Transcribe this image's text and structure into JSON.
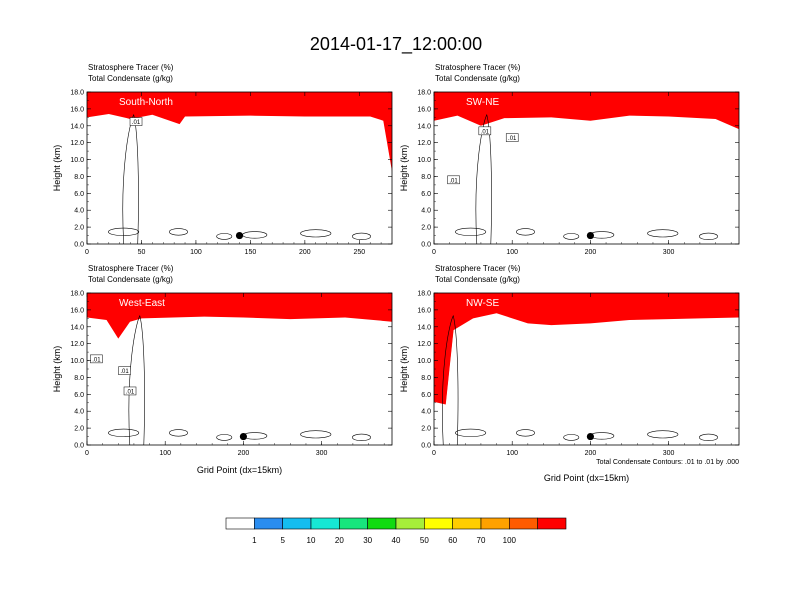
{
  "title": "2014-01-17_12:00:00",
  "colors": {
    "levels": [
      "#ffffff",
      "#2a8df0",
      "#14bdf0",
      "#16e8d4",
      "#17e67d",
      "#11db11",
      "#a6ee3a",
      "#ffff00",
      "#ffce00",
      "#ffa100",
      "#ff5b00",
      "#ff0000"
    ],
    "contour": "#000000"
  },
  "colorbar": {
    "labels": [
      "1",
      "5",
      "10",
      "20",
      "30",
      "40",
      "50",
      "60",
      "70",
      "100"
    ]
  },
  "footnote": "Total Condensate Contours: .01 to .01 by .000",
  "chart_data": [
    {
      "type": "heatmap",
      "name": "South-North",
      "header": [
        "Stratosphere Tracer   (%)",
        "Total Condensate   (g/kg)"
      ],
      "ylabel": "Height (km)",
      "xlabel": "",
      "xlim": [
        0,
        280
      ],
      "ylim": [
        0,
        18
      ],
      "xticks": [
        "0",
        "50",
        "100",
        "150",
        "200",
        "250"
      ],
      "xtick_values": [
        0,
        50,
        100,
        150,
        200,
        250
      ],
      "yticks": [
        "0.0",
        "2.0",
        "4.0",
        "6.0",
        "8.0",
        "10.0",
        "12.0",
        "14.0",
        "16.0",
        "18.0"
      ],
      "tropopause_km": [
        [
          0,
          15.4
        ],
        [
          20,
          15.8
        ],
        [
          40,
          15.2
        ],
        [
          60,
          15.7
        ],
        [
          85,
          14.6
        ],
        [
          90,
          15.5
        ],
        [
          150,
          15.6
        ],
        [
          200,
          15.5
        ],
        [
          260,
          15.5
        ],
        [
          272,
          15.0
        ],
        [
          276,
          12.0
        ],
        [
          280,
          9.0
        ]
      ],
      "contour_labels": [
        {
          "x": 45,
          "y": 14.5,
          "text": ".01"
        }
      ],
      "marker": {
        "x": 140,
        "y": 1.0
      }
    },
    {
      "type": "heatmap",
      "name": "SW-NE",
      "header": [
        "Stratosphere Tracer   (%)",
        "Total Condensate   (g/kg)"
      ],
      "ylabel": "Height (km)",
      "xlabel": "",
      "xlim": [
        0,
        390
      ],
      "ylim": [
        0,
        18
      ],
      "xticks": [
        "0",
        "100",
        "200",
        "300"
      ],
      "xtick_values": [
        0,
        100,
        200,
        300
      ],
      "yticks": [
        "0.0",
        "2.0",
        "4.0",
        "6.0",
        "8.0",
        "10.0",
        "12.0",
        "14.0",
        "16.0",
        "18.0"
      ],
      "tropopause_km": [
        [
          0,
          15.0
        ],
        [
          30,
          15.6
        ],
        [
          60,
          14.4
        ],
        [
          90,
          15.3
        ],
        [
          150,
          15.4
        ],
        [
          200,
          15.0
        ],
        [
          250,
          15.6
        ],
        [
          300,
          15.5
        ],
        [
          360,
          15.2
        ],
        [
          390,
          14.0
        ]
      ],
      "contour_labels": [
        {
          "x": 25,
          "y": 7.6,
          "text": ".01"
        },
        {
          "x": 65,
          "y": 13.4,
          "text": ".01"
        },
        {
          "x": 100,
          "y": 12.6,
          "text": ".01"
        }
      ],
      "marker": {
        "x": 200,
        "y": 1.0
      }
    },
    {
      "type": "heatmap",
      "name": "West-East",
      "header": [
        "Stratosphere Tracer   (%)",
        "Total Condensate   (g/kg)"
      ],
      "ylabel": "Height (km)",
      "xlabel": "Grid Point (dx=15km)",
      "xlim": [
        0,
        390
      ],
      "ylim": [
        0,
        18
      ],
      "xticks": [
        "0",
        "100",
        "200",
        "300"
      ],
      "xtick_values": [
        0,
        100,
        200,
        300
      ],
      "yticks": [
        "0.0",
        "2.0",
        "4.0",
        "6.0",
        "8.0",
        "10.0",
        "12.0",
        "14.0",
        "16.0",
        "18.0"
      ],
      "tropopause_km": [
        [
          0,
          15.5
        ],
        [
          25,
          15.2
        ],
        [
          40,
          13.0
        ],
        [
          55,
          15.0
        ],
        [
          70,
          15.4
        ],
        [
          150,
          15.6
        ],
        [
          200,
          15.5
        ],
        [
          260,
          15.3
        ],
        [
          330,
          15.5
        ],
        [
          390,
          15.0
        ]
      ],
      "contour_labels": [
        {
          "x": 12,
          "y": 10.2,
          "text": ".01"
        },
        {
          "x": 48,
          "y": 8.8,
          "text": ".01"
        },
        {
          "x": 55,
          "y": 6.4,
          "text": ".01"
        }
      ],
      "marker": {
        "x": 200,
        "y": 1.0
      }
    },
    {
      "type": "heatmap",
      "name": "NW-SE",
      "header": [
        "Stratosphere Tracer   (%)",
        "Total Condensate   (g/kg)"
      ],
      "ylabel": "Height (km)",
      "xlabel": "Grid Point (dx=15km)",
      "xlim": [
        0,
        390
      ],
      "ylim": [
        0,
        18
      ],
      "xticks": [
        "0",
        "100",
        "200",
        "300"
      ],
      "xtick_values": [
        0,
        100,
        200,
        300
      ],
      "yticks": [
        "0.0",
        "2.0",
        "4.0",
        "6.0",
        "8.0",
        "10.0",
        "12.0",
        "14.0",
        "16.0",
        "18.0"
      ],
      "tropopause_km": [
        [
          0,
          5.5
        ],
        [
          15,
          5.2
        ],
        [
          25,
          14.0
        ],
        [
          50,
          15.4
        ],
        [
          80,
          16.0
        ],
        [
          120,
          14.8
        ],
        [
          150,
          14.6
        ],
        [
          200,
          14.8
        ],
        [
          250,
          15.2
        ],
        [
          300,
          15.3
        ],
        [
          340,
          15.4
        ],
        [
          390,
          15.5
        ]
      ],
      "contour_labels": [],
      "marker": {
        "x": 200,
        "y": 1.0
      }
    }
  ]
}
